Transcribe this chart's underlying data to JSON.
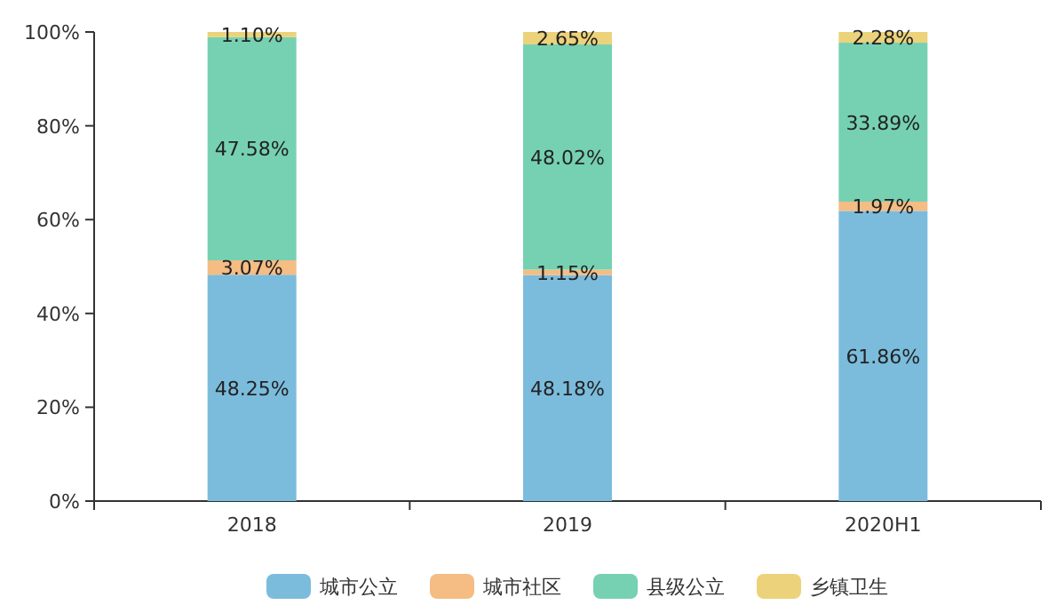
{
  "chart_data": {
    "type": "bar",
    "stacked": true,
    "categories": [
      "2018",
      "2019",
      "2020H1"
    ],
    "ylim": [
      0,
      100
    ],
    "yticks": [
      {
        "value": 0,
        "label": "0%"
      },
      {
        "value": 20,
        "label": "20%"
      },
      {
        "value": 40,
        "label": "40%"
      },
      {
        "value": 60,
        "label": "60%"
      },
      {
        "value": 80,
        "label": "80%"
      },
      {
        "value": 100,
        "label": "100%"
      }
    ],
    "legend": "bottom",
    "grid": false,
    "series": [
      {
        "name": "城市公立",
        "color": "#7bbcdc",
        "values": [
          48.25,
          48.18,
          61.86
        ],
        "value_labels": [
          "48.25%",
          "48.18%",
          "61.86%"
        ]
      },
      {
        "name": "城市社区",
        "color": "#f5bc83",
        "values": [
          3.07,
          1.15,
          1.97
        ],
        "value_labels": [
          "3.07%",
          "1.15%",
          "1.97%"
        ]
      },
      {
        "name": "县级公立",
        "color": "#76d1b3",
        "values": [
          47.58,
          48.02,
          33.89
        ],
        "value_labels": [
          "47.58%",
          "48.02%",
          "33.89%"
        ]
      },
      {
        "name": "乡镇卫生",
        "color": "#ecd27a",
        "values": [
          1.1,
          2.65,
          2.28
        ],
        "value_labels": [
          "1.10%",
          "2.65%",
          "2.28%"
        ]
      }
    ]
  }
}
